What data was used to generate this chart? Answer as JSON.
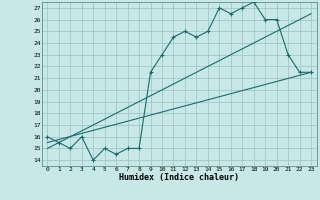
{
  "xlabel": "Humidex (Indice chaleur)",
  "bg_color": "#c8e8e8",
  "grid_color": "#a0c8c8",
  "line_color": "#1a6b6b",
  "xlim": [
    -0.5,
    23.5
  ],
  "ylim": [
    13.5,
    27.5
  ],
  "xticks": [
    0,
    1,
    2,
    3,
    4,
    5,
    6,
    7,
    8,
    9,
    10,
    11,
    12,
    13,
    14,
    15,
    16,
    17,
    18,
    19,
    20,
    21,
    22,
    23
  ],
  "yticks": [
    14,
    15,
    16,
    17,
    18,
    19,
    20,
    21,
    22,
    23,
    24,
    25,
    26,
    27
  ],
  "line1_x": [
    0,
    1,
    2,
    3,
    4,
    5,
    6,
    7,
    8,
    9,
    10,
    11,
    12,
    13,
    14,
    15,
    16,
    17,
    18,
    19,
    20,
    21,
    22,
    23
  ],
  "line1_y": [
    16,
    15.5,
    15,
    16,
    14,
    15,
    14.5,
    15,
    15,
    21.5,
    23,
    24.5,
    25,
    24.5,
    25,
    27,
    26.5,
    27,
    27.5,
    26,
    26,
    23,
    21.5,
    21.5
  ],
  "line2_x": [
    0,
    23
  ],
  "line2_y": [
    15.5,
    21.5
  ],
  "line3_x": [
    0,
    23
  ],
  "line3_y": [
    15,
    26.5
  ]
}
